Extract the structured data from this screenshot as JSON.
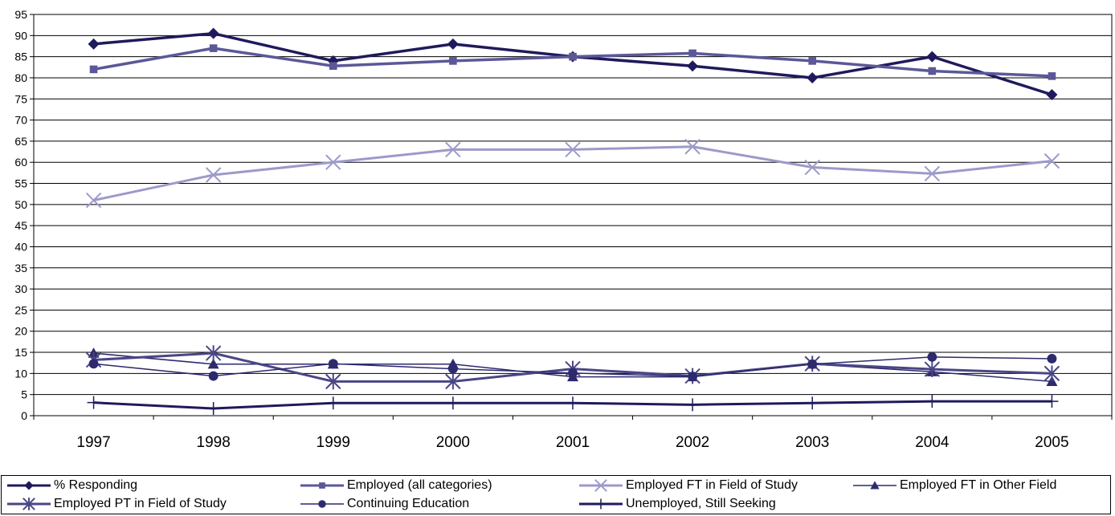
{
  "chart_data": {
    "type": "line",
    "title": "",
    "xlabel": "",
    "ylabel": "",
    "ylim": [
      0,
      95
    ],
    "yticks": [
      0,
      5,
      10,
      15,
      20,
      25,
      30,
      35,
      40,
      45,
      50,
      55,
      60,
      65,
      70,
      75,
      80,
      85,
      90,
      95
    ],
    "grid": "horizontal",
    "legend_position": "bottom",
    "categories": [
      "1997",
      "1998",
      "1999",
      "2000",
      "2001",
      "2002",
      "2003",
      "2004",
      "2005"
    ],
    "series": [
      {
        "name": "% Responding",
        "color": "#1f1a5c",
        "marker": "diamond",
        "width": 3.5,
        "values": [
          88,
          90.5,
          84,
          88,
          85,
          82.8,
          80,
          85,
          76
        ]
      },
      {
        "name": "Employed (all categories)",
        "color": "#5b5898",
        "marker": "square",
        "width": 3.5,
        "values": [
          82,
          87,
          82.8,
          84,
          85,
          85.8,
          84,
          81.6,
          80.4
        ]
      },
      {
        "name": "Employed FT in Field of Study",
        "color": "#9c9ac9",
        "marker": "x",
        "width": 3,
        "values": [
          51,
          57,
          60,
          63,
          63,
          63.7,
          58.8,
          57.3,
          60.3
        ]
      },
      {
        "name": "Employed FT in Other Field",
        "color": "#2d2a6e",
        "marker": "triangle",
        "width": 1.5,
        "values": [
          14.8,
          12.2,
          12.2,
          12.2,
          9.2,
          9.2,
          12.2,
          10.4,
          8.1
        ]
      },
      {
        "name": "Employed PT in Field of Study",
        "color": "#4a4686",
        "marker": "asterisk",
        "width": 3,
        "values": [
          13.2,
          14.8,
          8.1,
          8.1,
          11.1,
          9.4,
          12.3,
          11,
          10
        ]
      },
      {
        "name": "Continuing Education",
        "color": "#2d2a6e",
        "marker": "circle",
        "width": 1.5,
        "values": [
          12.3,
          9.4,
          12.3,
          11.1,
          10.1,
          9.3,
          12.2,
          13.9,
          13.5
        ]
      },
      {
        "name": "Unemployed, Still Seeking",
        "color": "#1f1a5c",
        "marker": "plus",
        "width": 3,
        "values": [
          3.1,
          1.7,
          3,
          3,
          3,
          2.6,
          3,
          3.4,
          3.4
        ]
      }
    ]
  }
}
